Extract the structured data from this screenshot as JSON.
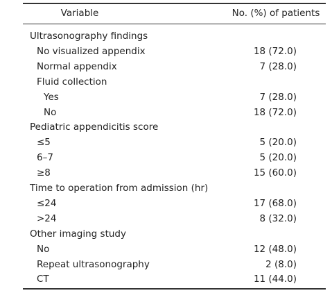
{
  "table": {
    "header": [
      "Variable",
      "No. (%) of patients"
    ],
    "groups": [
      {
        "label": "Ultrasonography findings",
        "items": [
          {
            "label": "No visualized appendix",
            "value": "18 (72.0)"
          },
          {
            "label": "Normal appendix",
            "value": "7 (28.0)"
          },
          {
            "label": "Fluid collection",
            "items": [
              {
                "label": "Yes",
                "value": "7 (28.0)"
              },
              {
                "label": "No",
                "value": "18 (72.0)"
              }
            ]
          }
        ]
      },
      {
        "label": "Pediatric appendicitis score",
        "items": [
          {
            "label": "≤5",
            "value": "5 (20.0)"
          },
          {
            "label": "6–7",
            "value": "5 (20.0)"
          },
          {
            "label": "≥8",
            "value": "15 (60.0)"
          }
        ]
      },
      {
        "label": "Time to operation from admission (hr)",
        "items": [
          {
            "label": "≤24",
            "value": "17 (68.0)"
          },
          {
            "label": ">24",
            "value": "8 (32.0)"
          }
        ]
      },
      {
        "label": "Other imaging study",
        "items": [
          {
            "label": "No",
            "value": "12 (48.0)"
          },
          {
            "label": "Repeat ultrasonography",
            "value": "2 (8.0)"
          },
          {
            "label": "CT",
            "value": "11 (44.0)"
          }
        ]
      }
    ]
  }
}
